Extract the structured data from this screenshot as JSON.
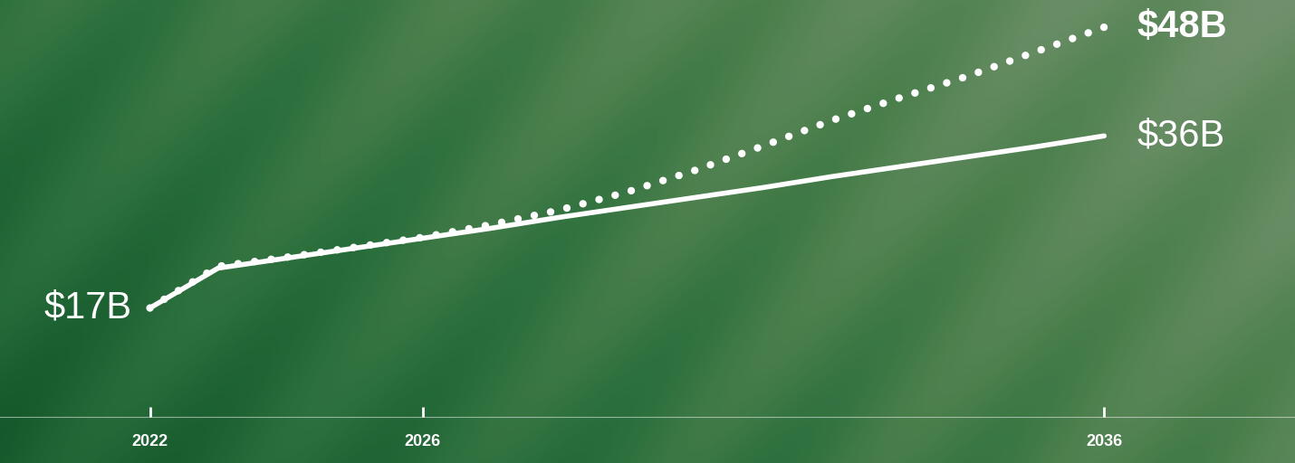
{
  "chart_data": {
    "type": "line",
    "x": [
      2022,
      2023,
      2024,
      2025,
      2026,
      2027,
      2028,
      2029,
      2030,
      2031,
      2032,
      2033,
      2034,
      2035,
      2036
    ],
    "series": [
      {
        "color": "#ffffff",
        "line_style": "dotted",
        "values": [
          17,
          21.6,
          22.6,
          23.7,
          24.8,
          26.2,
          27.8,
          29.8,
          32.2,
          34.9,
          37.7,
          40.2,
          42.6,
          45.3,
          48
        ],
        "value_labels": [
          null,
          null,
          null,
          null,
          null,
          null,
          null,
          null,
          null,
          null,
          null,
          null,
          null,
          null,
          "$48B"
        ]
      },
      {
        "color": "#ffffff",
        "line_style": "solid",
        "values": [
          17,
          21.4,
          22.5,
          23.6,
          24.7,
          25.8,
          27.0,
          28.1,
          29.2,
          30.3,
          31.5,
          32.6,
          33.7,
          34.8,
          36
        ],
        "value_labels": [
          "$17B",
          null,
          null,
          null,
          null,
          null,
          null,
          null,
          null,
          null,
          null,
          null,
          null,
          null,
          "$36B"
        ]
      }
    ],
    "xlim": [
      2019.8,
      2038.8
    ],
    "xticks": [
      2022,
      2026,
      2036
    ],
    "ylim": [
      5,
      51
    ],
    "yticks": [],
    "tick_labels": "x",
    "grid": false
  }
}
